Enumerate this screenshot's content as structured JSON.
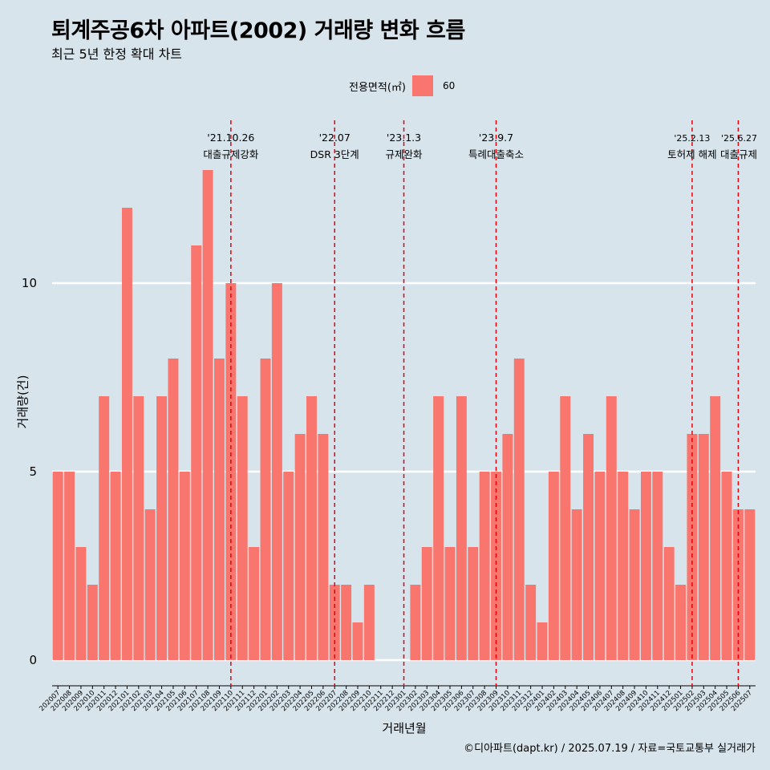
{
  "header": {
    "title": "퇴계주공6차 아파트(2002) 거래량 변화 흐름",
    "subtitle": "최근 5년 한정 확대 차트"
  },
  "legend": {
    "title": "전용면적(㎡)",
    "entries": [
      "60"
    ]
  },
  "caption": "©디아파트(dapt.kr) / 2025.07.19 / 자료=국토교통부 실거래가",
  "colors": {
    "background": "#d7e4ec",
    "bar": "#f8766d",
    "grid": "#ffffff",
    "event_line": "#e8000b"
  },
  "chart_data": {
    "type": "bar",
    "xlabel": "거래년월",
    "ylabel": "거래량(건)",
    "ylim": [
      0,
      13
    ],
    "yticks": [
      0,
      5,
      10
    ],
    "grid": true,
    "legend_position": "top",
    "categories": [
      "202007",
      "202008",
      "202009",
      "202010",
      "202011",
      "202012",
      "202101",
      "202102",
      "202103",
      "202104",
      "202105",
      "202106",
      "202107",
      "202108",
      "202109",
      "202110",
      "202111",
      "202112",
      "202201",
      "202202",
      "202203",
      "202204",
      "202205",
      "202206",
      "202207",
      "202208",
      "202209",
      "202210",
      "202211",
      "202212",
      "202301",
      "202302",
      "202303",
      "202304",
      "202305",
      "202306",
      "202307",
      "202308",
      "202309",
      "202310",
      "202311",
      "202312",
      "202401",
      "202402",
      "202403",
      "202404",
      "202405",
      "202406",
      "202407",
      "202408",
      "202409",
      "202410",
      "202411",
      "202412",
      "202501",
      "202502",
      "202503",
      "202504",
      "202505",
      "202506",
      "202507"
    ],
    "series": [
      {
        "name": "60",
        "values": [
          5,
          5,
          3,
          2,
          7,
          5,
          12,
          7,
          4,
          7,
          8,
          5,
          11,
          13,
          8,
          10,
          7,
          3,
          8,
          10,
          5,
          6,
          7,
          6,
          2,
          2,
          1,
          2,
          0,
          0,
          0,
          2,
          3,
          7,
          3,
          7,
          3,
          5,
          5,
          6,
          8,
          2,
          1,
          5,
          7,
          4,
          6,
          5,
          7,
          5,
          4,
          5,
          5,
          3,
          2,
          6,
          6,
          7,
          5,
          4,
          4
        ]
      }
    ],
    "annotations": [
      {
        "x": "202110",
        "date": "'21.10.26",
        "label": "대출규제강화"
      },
      {
        "x": "202207",
        "date": "'22.07",
        "label": "DSR 3단계"
      },
      {
        "x": "202301",
        "date": "'23.1.3",
        "label": "규제완화"
      },
      {
        "x": "202309",
        "date": "'23.9.7",
        "label": "특례대출축소"
      },
      {
        "x": "202502",
        "date": "'25.2.13",
        "label": "토허제 해제"
      },
      {
        "x": "202506",
        "date": "'25.6.27",
        "label": "대출규제"
      }
    ]
  }
}
